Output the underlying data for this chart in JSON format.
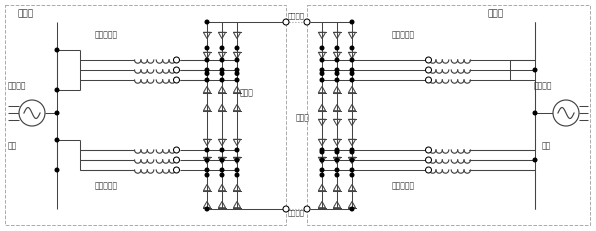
{
  "figsize": [
    5.96,
    2.31
  ],
  "dpi": 100,
  "bg": "#ffffff",
  "lc": "#444444",
  "bc": "#aaaaaa",
  "tc": "#333333",
  "labels": {
    "rect": "整流站",
    "inv": "逆变站",
    "ac_l": "交流电网",
    "volt_l": "电压",
    "ac_r": "交流电网",
    "volt_r": "电压",
    "ct_tl": "换流变压器",
    "ct_bl": "换流变压器",
    "cv_l": "换流阀",
    "cv_r": "换流阀",
    "ct_tr": "换流变压器",
    "ct_br": "换流变压器",
    "dc_top": "直流线路",
    "dc_bot": "直流线路"
  }
}
